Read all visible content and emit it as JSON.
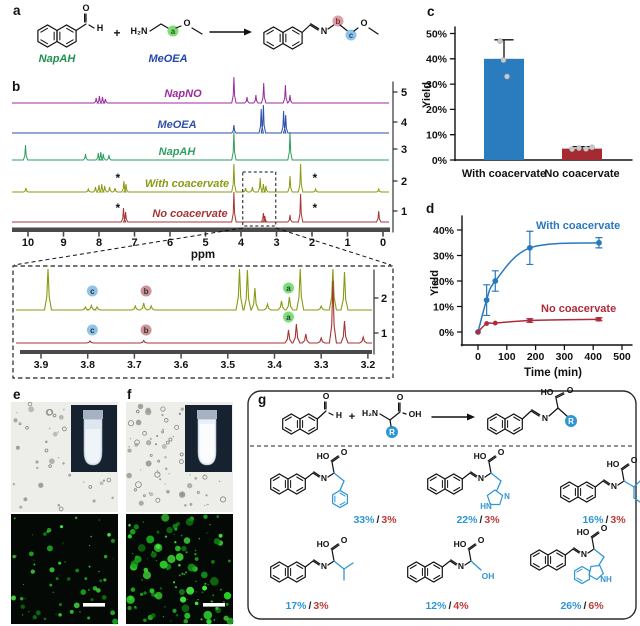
{
  "figure": {
    "panel_labels": {
      "a": "a",
      "b": "b",
      "c": "c",
      "d": "d",
      "e": "e",
      "f": "f",
      "g": "g"
    }
  },
  "panel_a": {
    "reactant1_name": "NapAH",
    "reactant1_color": "#1E9150",
    "reactant2_name": "MeOEA",
    "reactant2_color": "#2446A8",
    "plus": "+",
    "chem": {
      "O": "O",
      "H": "H",
      "H2N": "H₂N",
      "N": "N"
    },
    "site_labels": [
      {
        "text": "a",
        "color": "#7FDC78"
      },
      {
        "text": "b",
        "color": "#DCA0A8"
      },
      {
        "text": "c",
        "color": "#8FC3E8"
      }
    ]
  },
  "panel_b": {
    "xlabel": "ppm",
    "x_ticks": [
      "10",
      "9",
      "8",
      "7",
      "6",
      "5",
      "4",
      "3",
      "2",
      "1",
      "0"
    ],
    "asterisk": "*",
    "right_axis_ticks": [
      "5",
      "4",
      "3",
      "2",
      "1"
    ],
    "spectra": [
      {
        "label": "NapNO",
        "color": "#9B2C9E",
        "index": "5",
        "peaks": [
          [
            8.08,
            5
          ],
          [
            7.99,
            7
          ],
          [
            7.9,
            6
          ],
          [
            7.82,
            4
          ],
          [
            4.2,
            26
          ],
          [
            3.83,
            6
          ],
          [
            3.58,
            8
          ],
          [
            3.36,
            20
          ],
          [
            2.75,
            18
          ],
          [
            2.62,
            8
          ]
        ]
      },
      {
        "label": "MeOEA",
        "color": "#2F4FA8",
        "index": "4",
        "peaks": [
          [
            4.2,
            8
          ],
          [
            3.43,
            24
          ],
          [
            3.37,
            28
          ],
          [
            2.8,
            22
          ],
          [
            2.74,
            18
          ]
        ]
      },
      {
        "label": "NapAH",
        "color": "#2E9E62",
        "index": "3",
        "peaks": [
          [
            10.07,
            15
          ],
          [
            8.38,
            6
          ],
          [
            8.02,
            7
          ],
          [
            7.95,
            8
          ],
          [
            7.88,
            6
          ],
          [
            7.72,
            5
          ],
          [
            4.2,
            28
          ],
          [
            2.62,
            28
          ]
        ]
      },
      {
        "label": "With coacervate",
        "color": "#8A9A12",
        "index": "2",
        "peaks": [
          [
            10.06,
            4
          ],
          [
            8.3,
            3
          ],
          [
            8.1,
            5
          ],
          [
            8.0,
            7
          ],
          [
            7.92,
            8
          ],
          [
            7.84,
            6
          ],
          [
            7.7,
            5
          ],
          [
            7.55,
            4
          ],
          [
            7.3,
            11
          ],
          [
            7.24,
            8
          ],
          [
            4.2,
            28
          ],
          [
            3.87,
            4
          ],
          [
            3.68,
            5
          ],
          [
            3.46,
            14
          ],
          [
            3.37,
            8
          ],
          [
            3.3,
            6
          ],
          [
            2.62,
            16
          ],
          [
            2.32,
            28
          ],
          [
            1.9,
            3
          ],
          [
            0.12,
            3
          ]
        ]
      },
      {
        "label": "No coacervate",
        "color": "#A63434",
        "index": "1",
        "peaks": [
          [
            7.31,
            14
          ],
          [
            7.25,
            10
          ],
          [
            4.2,
            30
          ],
          [
            3.37,
            9
          ],
          [
            3.33,
            6
          ],
          [
            2.62,
            7
          ],
          [
            2.32,
            28
          ],
          [
            0.12,
            11
          ]
        ]
      }
    ],
    "asterisk_marks": [
      {
        "spectrum": 3,
        "ppm": 7.47
      },
      {
        "spectrum": 4,
        "ppm": 7.47
      },
      {
        "spectrum": 3,
        "ppm": 1.92
      },
      {
        "spectrum": 4,
        "ppm": 1.92
      }
    ],
    "zoom_box_ppm": [
      3.95,
      3.02
    ]
  },
  "panel_b_inset": {
    "x_ticks": [
      "3.9",
      "3.8",
      "3.7",
      "3.6",
      "3.5",
      "3.4",
      "3.3",
      "3.2"
    ],
    "traces": [
      {
        "index": "2",
        "color": "#8A9A12",
        "peaks": [
          [
            3.885,
            48
          ],
          [
            3.805,
            3
          ],
          [
            3.792,
            4.5
          ],
          [
            3.78,
            3
          ],
          [
            3.698,
            4
          ],
          [
            3.68,
            7
          ],
          [
            3.664,
            4
          ],
          [
            3.475,
            46
          ],
          [
            3.458,
            40
          ],
          [
            3.442,
            22
          ],
          [
            3.415,
            6
          ],
          [
            3.385,
            9
          ],
          [
            3.368,
            13
          ],
          [
            3.345,
            46
          ],
          [
            3.3,
            4
          ],
          [
            3.275,
            48
          ],
          [
            3.25,
            38
          ]
        ]
      },
      {
        "index": "1",
        "color": "#A63434",
        "peaks": [
          [
            3.795,
            2
          ],
          [
            3.68,
            2.5
          ],
          [
            3.37,
            13
          ],
          [
            3.353,
            19
          ],
          [
            3.333,
            9
          ],
          [
            3.3,
            5
          ],
          [
            3.275,
            62
          ],
          [
            3.25,
            22
          ],
          [
            3.21,
            6
          ]
        ]
      }
    ],
    "site_markers": [
      {
        "text": "c",
        "ppm": 3.79,
        "color": "#8FC3E8"
      },
      {
        "text": "b",
        "ppm": 3.675,
        "color": "#CD9296"
      },
      {
        "text": "a",
        "ppm": 3.37,
        "color": "#7BDE7B"
      }
    ]
  },
  "chart_data": [
    {
      "id": "panel_c",
      "type": "bar",
      "title": "",
      "categories": [
        "With coacervate",
        "No coacervate"
      ],
      "values": [
        40,
        4.5
      ],
      "upper_errors": [
        7.5,
        0.8
      ],
      "scatter_points": [
        [
          47,
          39.5,
          33
        ],
        [
          4.3,
          4.7,
          4.4,
          5.0
        ]
      ],
      "bar_colors": [
        "#2B7CBE",
        "#A52A32"
      ],
      "ylabel": "Yield",
      "yticks": [
        "0%",
        "10%",
        "20%",
        "30%",
        "40%",
        "50%"
      ],
      "ylim": [
        0,
        50
      ],
      "grid": false
    },
    {
      "id": "panel_d",
      "type": "line",
      "x": [
        0,
        30,
        60,
        180,
        420
      ],
      "series": [
        {
          "name": "With coacervate",
          "color": "#2878BE",
          "values": [
            0,
            12.5,
            20,
            33,
            35
          ],
          "errors": [
            0.3,
            6,
            4,
            6.5,
            2
          ]
        },
        {
          "name": "No coacervate",
          "color": "#AF2B3C",
          "values": [
            0,
            3.3,
            3.5,
            4.5,
            5
          ],
          "errors": [
            0.2,
            0.5,
            0.5,
            0.7,
            0.6
          ]
        }
      ],
      "xlabel": "Time (min)",
      "xticks": [
        "0",
        "100",
        "200",
        "300",
        "400",
        "500"
      ],
      "yticks": [
        "0%",
        "10%",
        "20%",
        "30%",
        "40%"
      ],
      "xlim": [
        -40,
        520
      ],
      "ylim": [
        -4,
        44
      ],
      "legend_position": "inline",
      "grid": false
    }
  ],
  "microscopy": {
    "fluorescence_color": "#2FC42C",
    "fluorescence_background": "#050905",
    "brightfield_background": "#EDEDEA"
  },
  "panel_g": {
    "chem": {
      "HO": "HO",
      "O": "O",
      "OH": "OH",
      "H": "H",
      "H2N": "H₂N",
      "N": "N",
      "HN": "HN",
      "NH": "NH",
      "R": "R",
      "plus": "+"
    },
    "accent_blue": "#2E96D3",
    "accent_red": "#C13A3A",
    "separator": "/",
    "structures": [
      {
        "side_chain": "benzyl",
        "yield_blue": "33%",
        "yield_red": "3%"
      },
      {
        "side_chain": "imidazole",
        "yield_blue": "22%",
        "yield_red": "3%"
      },
      {
        "side_chain": "sec-butyl",
        "yield_blue": "16%",
        "yield_red": "3%"
      },
      {
        "side_chain": "isopropyl",
        "yield_blue": "17%",
        "yield_red": "3%"
      },
      {
        "side_chain": "hydroxymethyl",
        "yield_blue": "12%",
        "yield_red": "4%"
      },
      {
        "side_chain": "indole",
        "yield_blue": "26%",
        "yield_red": "6%"
      }
    ]
  }
}
